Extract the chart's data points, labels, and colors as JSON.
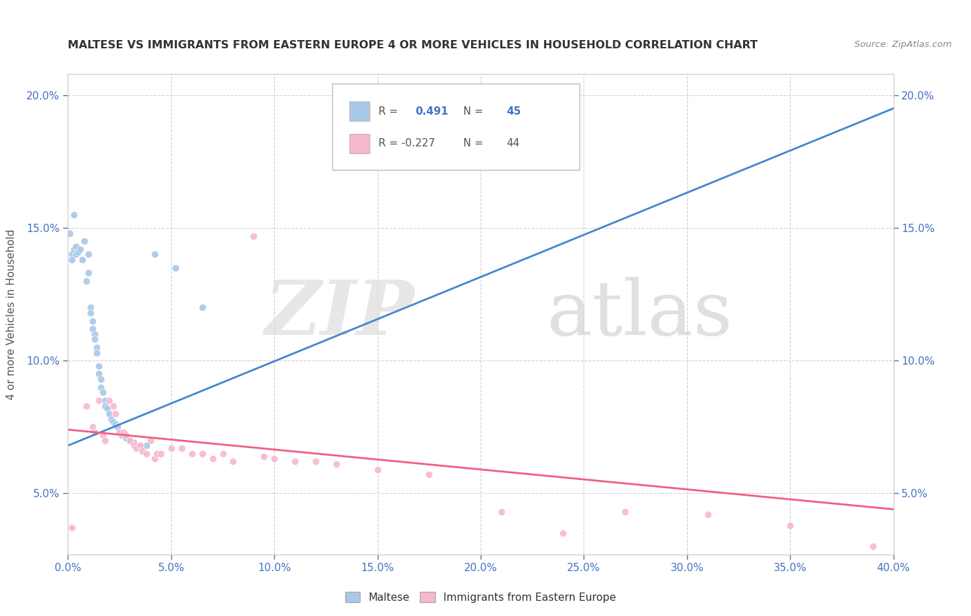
{
  "title": "MALTESE VS IMMIGRANTS FROM EASTERN EUROPE 4 OR MORE VEHICLES IN HOUSEHOLD CORRELATION CHART",
  "source": "Source: ZipAtlas.com",
  "ylabel": "4 or more Vehicles in Household",
  "legend_blue_label": "Maltese",
  "legend_pink_label": "Immigrants from Eastern Europe",
  "blue_r_val": "0.491",
  "blue_n_val": "45",
  "pink_r_val": "-0.227",
  "pink_n_val": "44",
  "blue_scatter_color": "#a8c8e8",
  "pink_scatter_color": "#f8b8cc",
  "blue_line_color": "#4488cc",
  "pink_line_color": "#f06080",
  "blue_trend_x": [
    0.0,
    0.4
  ],
  "blue_trend_y": [
    0.068,
    0.195
  ],
  "pink_trend_x": [
    0.0,
    0.4
  ],
  "pink_trend_y": [
    0.074,
    0.044
  ],
  "x_min": 0.0,
  "x_max": 0.4,
  "y_min": 0.027,
  "y_max": 0.208,
  "x_ticks": [
    0.0,
    0.05,
    0.1,
    0.15,
    0.2,
    0.25,
    0.3,
    0.35,
    0.4
  ],
  "y_ticks": [
    0.05,
    0.1,
    0.15,
    0.2
  ],
  "blue_points": [
    [
      0.001,
      0.148
    ],
    [
      0.002,
      0.14
    ],
    [
      0.002,
      0.138
    ],
    [
      0.003,
      0.155
    ],
    [
      0.003,
      0.142
    ],
    [
      0.004,
      0.143
    ],
    [
      0.004,
      0.14
    ],
    [
      0.005,
      0.141
    ],
    [
      0.006,
      0.142
    ],
    [
      0.007,
      0.138
    ],
    [
      0.008,
      0.145
    ],
    [
      0.009,
      0.13
    ],
    [
      0.01,
      0.14
    ],
    [
      0.01,
      0.133
    ],
    [
      0.011,
      0.12
    ],
    [
      0.011,
      0.118
    ],
    [
      0.012,
      0.115
    ],
    [
      0.012,
      0.112
    ],
    [
      0.013,
      0.11
    ],
    [
      0.013,
      0.108
    ],
    [
      0.014,
      0.105
    ],
    [
      0.014,
      0.103
    ],
    [
      0.015,
      0.098
    ],
    [
      0.015,
      0.095
    ],
    [
      0.016,
      0.093
    ],
    [
      0.016,
      0.09
    ],
    [
      0.017,
      0.088
    ],
    [
      0.018,
      0.085
    ],
    [
      0.018,
      0.083
    ],
    [
      0.019,
      0.082
    ],
    [
      0.02,
      0.08
    ],
    [
      0.021,
      0.078
    ],
    [
      0.022,
      0.077
    ],
    [
      0.023,
      0.076
    ],
    [
      0.024,
      0.075
    ],
    [
      0.025,
      0.073
    ],
    [
      0.026,
      0.072
    ],
    [
      0.028,
      0.071
    ],
    [
      0.03,
      0.07
    ],
    [
      0.032,
      0.069
    ],
    [
      0.035,
      0.068
    ],
    [
      0.038,
      0.068
    ],
    [
      0.042,
      0.14
    ],
    [
      0.052,
      0.135
    ],
    [
      0.065,
      0.12
    ]
  ],
  "pink_points": [
    [
      0.002,
      0.037
    ],
    [
      0.009,
      0.083
    ],
    [
      0.012,
      0.075
    ],
    [
      0.013,
      0.073
    ],
    [
      0.015,
      0.085
    ],
    [
      0.017,
      0.072
    ],
    [
      0.018,
      0.07
    ],
    [
      0.02,
      0.085
    ],
    [
      0.022,
      0.083
    ],
    [
      0.023,
      0.08
    ],
    [
      0.025,
      0.073
    ],
    [
      0.027,
      0.073
    ],
    [
      0.028,
      0.072
    ],
    [
      0.03,
      0.07
    ],
    [
      0.032,
      0.068
    ],
    [
      0.033,
      0.067
    ],
    [
      0.035,
      0.068
    ],
    [
      0.036,
      0.066
    ],
    [
      0.038,
      0.065
    ],
    [
      0.04,
      0.07
    ],
    [
      0.042,
      0.063
    ],
    [
      0.043,
      0.065
    ],
    [
      0.045,
      0.065
    ],
    [
      0.05,
      0.067
    ],
    [
      0.055,
      0.067
    ],
    [
      0.06,
      0.065
    ],
    [
      0.065,
      0.065
    ],
    [
      0.07,
      0.063
    ],
    [
      0.075,
      0.065
    ],
    [
      0.08,
      0.062
    ],
    [
      0.09,
      0.147
    ],
    [
      0.095,
      0.064
    ],
    [
      0.1,
      0.063
    ],
    [
      0.11,
      0.062
    ],
    [
      0.12,
      0.062
    ],
    [
      0.13,
      0.061
    ],
    [
      0.15,
      0.059
    ],
    [
      0.175,
      0.057
    ],
    [
      0.21,
      0.043
    ],
    [
      0.24,
      0.035
    ],
    [
      0.27,
      0.043
    ],
    [
      0.31,
      0.042
    ],
    [
      0.35,
      0.038
    ],
    [
      0.39,
      0.03
    ]
  ]
}
